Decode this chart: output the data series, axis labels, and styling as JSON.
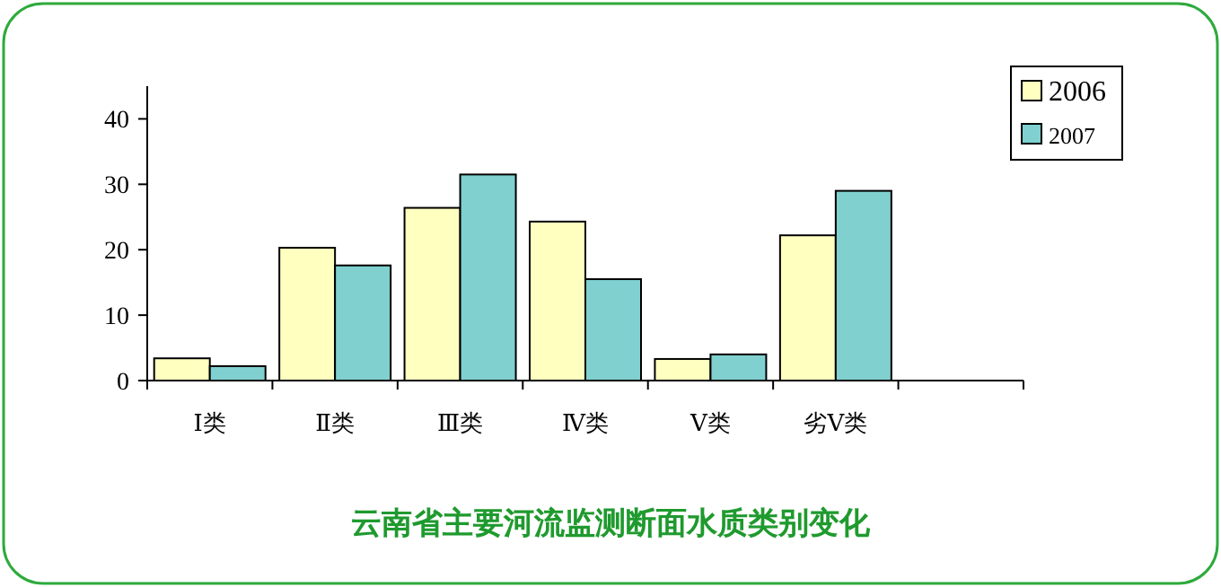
{
  "chart_data": {
    "type": "bar",
    "title": "云南省主要河流监测断面水质类别变化",
    "categories": [
      "Ⅰ类",
      "Ⅱ类",
      "Ⅲ类",
      "Ⅳ类",
      "Ⅴ类",
      "劣Ⅴ类",
      null
    ],
    "series": [
      {
        "name": "2006",
        "color": "#ffffc0",
        "values": [
          3.4,
          20.3,
          26.4,
          24.3,
          3.3,
          22.2,
          null
        ]
      },
      {
        "name": "2007",
        "color": "#80d0d0",
        "values": [
          2.2,
          17.6,
          31.5,
          15.5,
          4.0,
          29.0,
          null
        ]
      }
    ],
    "ylim": [
      0,
      45
    ],
    "yticks": [
      0,
      10,
      20,
      30,
      40
    ],
    "grid": false,
    "legend": "top right"
  }
}
